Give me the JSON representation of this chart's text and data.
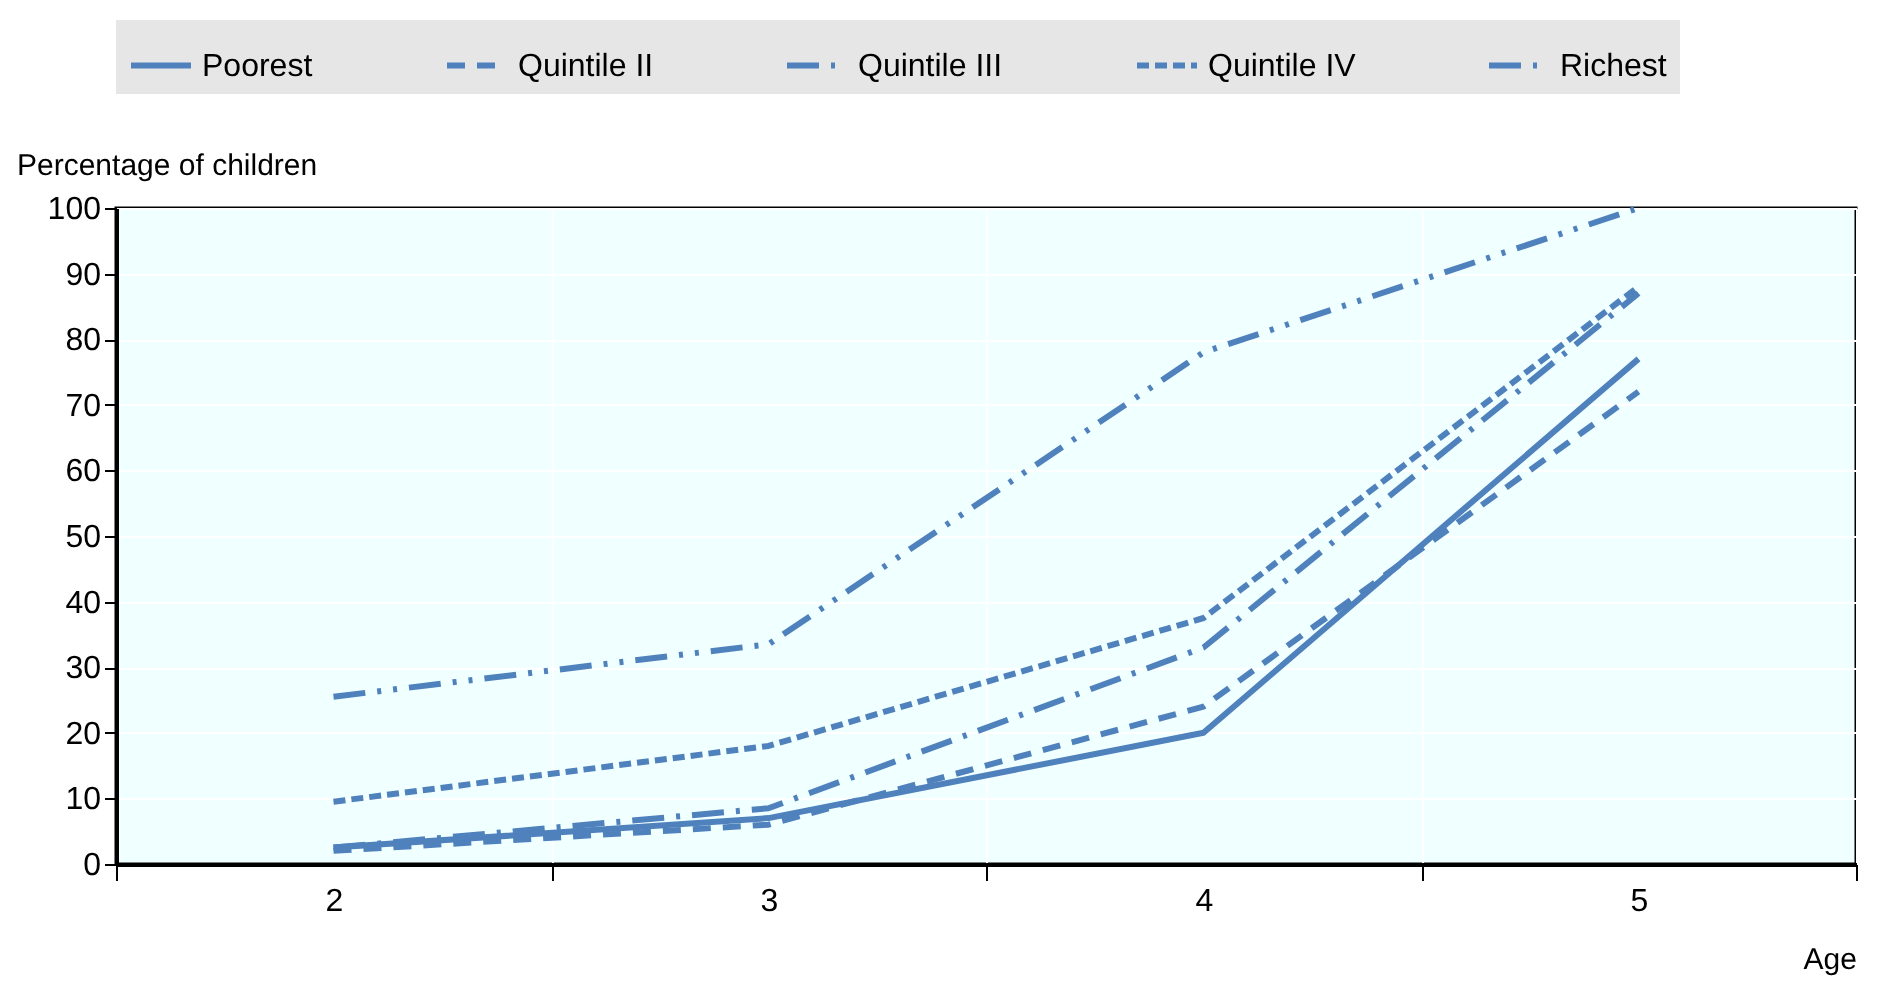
{
  "chart_data": {
    "type": "line",
    "ylabel": "Percentage of children",
    "xlabel": "Age",
    "categories": [
      "2",
      "3",
      "4",
      "5"
    ],
    "series": [
      {
        "name": "Poorest",
        "color": "#4f81bd",
        "line_style": "solid",
        "values": [
          2.5,
          7,
          20,
          77
        ]
      },
      {
        "name": "Quintile II",
        "color": "#4f81bd",
        "line_style": "dashed",
        "values": [
          2,
          6,
          24,
          72
        ]
      },
      {
        "name": "Quintile III",
        "color": "#4f81bd",
        "line_style": "dashdot",
        "values": [
          2.5,
          8.5,
          33,
          87
        ]
      },
      {
        "name": "Quintile IV",
        "color": "#4f81bd",
        "line_style": "shortdash",
        "values": [
          9.5,
          18,
          37.5,
          88
        ]
      },
      {
        "name": "Richest",
        "color": "#4f81bd",
        "line_style": "dashdotdot",
        "values": [
          25.5,
          33.5,
          78,
          100
        ]
      }
    ],
    "ylim": [
      0,
      100
    ],
    "yticks": [
      0,
      10,
      20,
      30,
      40,
      50,
      60,
      70,
      80,
      90,
      100
    ],
    "grid": true,
    "legend": "top",
    "marker": "none"
  }
}
